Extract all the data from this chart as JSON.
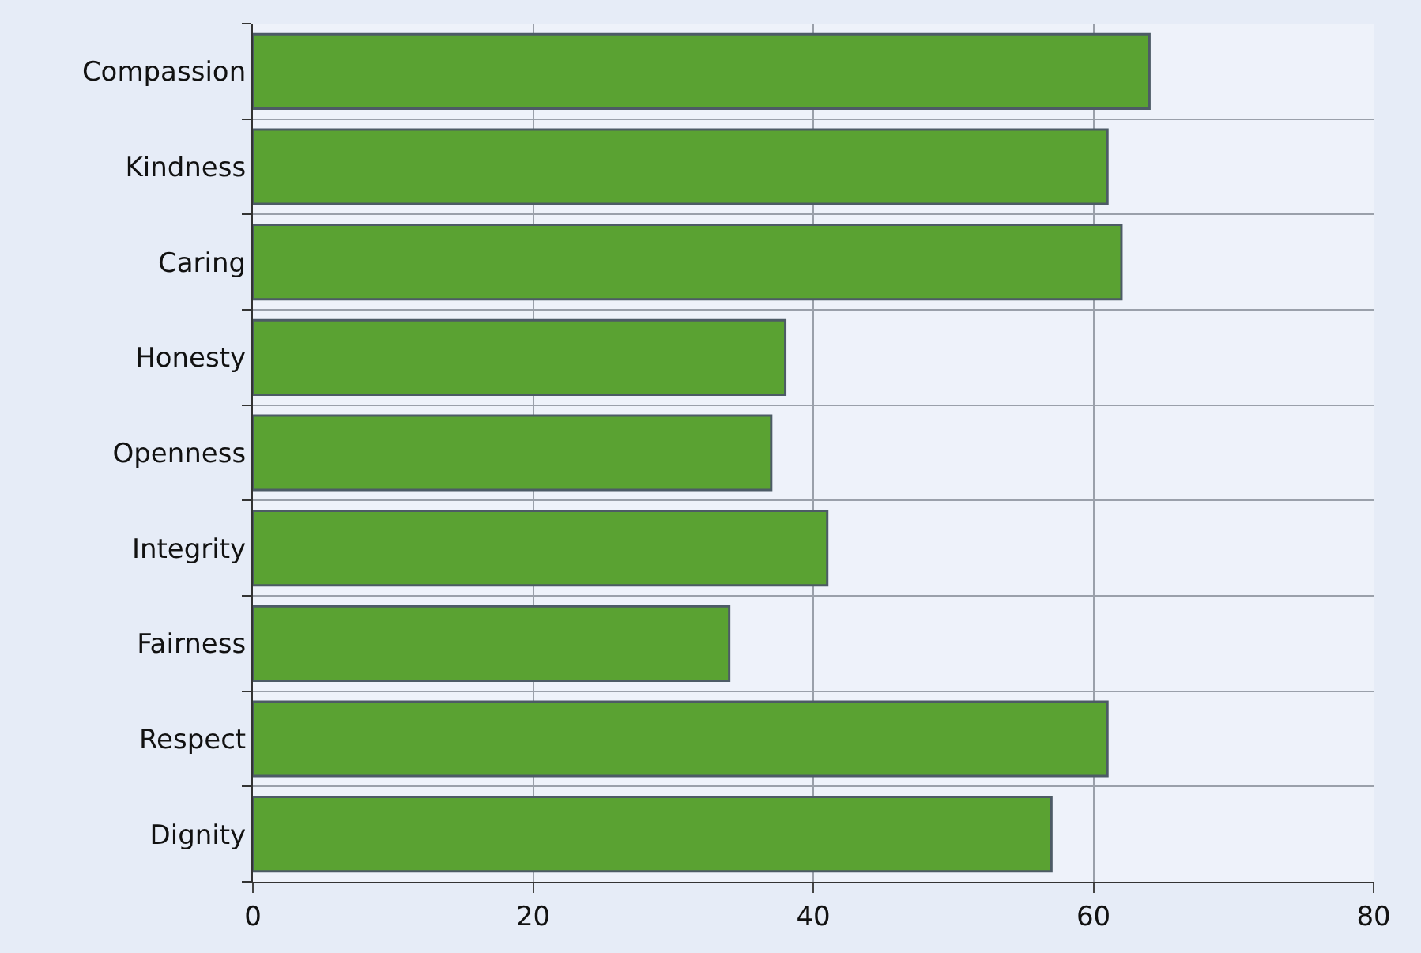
{
  "chart_data": {
    "type": "bar",
    "orientation": "horizontal",
    "categories": [
      "Compassion",
      "Kindness",
      "Caring",
      "Honesty",
      "Openness",
      "Integrity",
      "Fairness",
      "Respect",
      "Dignity"
    ],
    "values": [
      64,
      61,
      62,
      38,
      37,
      41,
      34,
      61,
      57
    ],
    "color": "#5aa232",
    "xlim": [
      0,
      80
    ],
    "xticks": [
      0,
      20,
      40,
      60,
      80
    ],
    "grid": true,
    "legend": false
  }
}
